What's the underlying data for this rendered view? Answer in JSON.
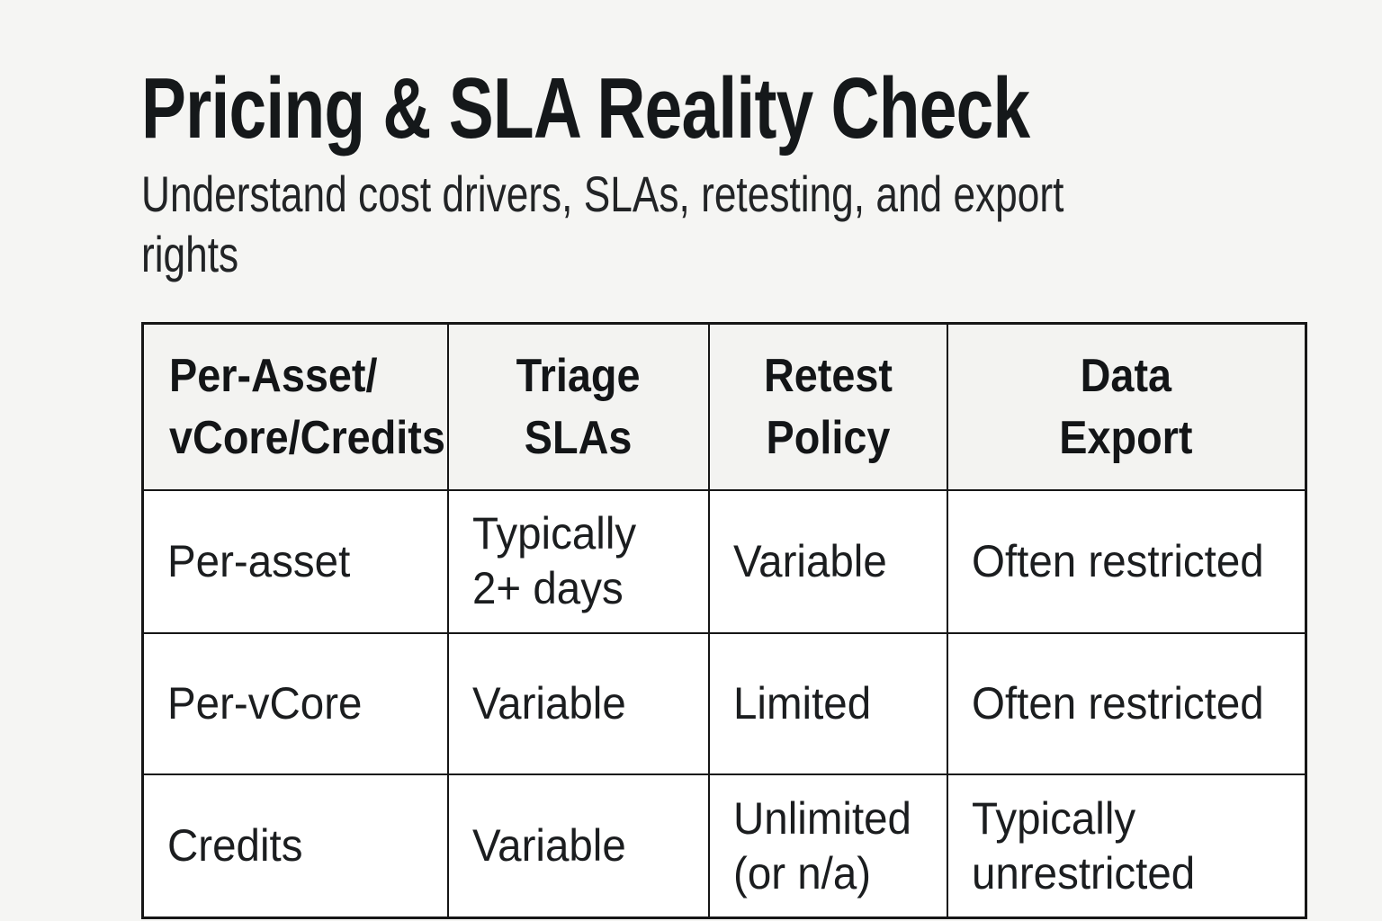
{
  "page": {
    "title": "Pricing & SLA Reality Check",
    "subtitle": "Understand cost drivers, SLAs, retesting, and export rights"
  },
  "table": {
    "columns": [
      {
        "label": "Per-Asset/\nvCore/Credits"
      },
      {
        "label": "Triage\nSLAs"
      },
      {
        "label": "Retest\nPolicy"
      },
      {
        "label": "Data\nExport"
      }
    ],
    "rows": [
      [
        "Per-asset",
        "Typically\n2+ days",
        "Variable",
        "Often restricted"
      ],
      [
        "Per-vCore",
        "Variable",
        "Limited",
        "Often restricted"
      ],
      [
        "Credits",
        "Variable",
        "Unlimited\n(or n/a)",
        "Typically\nunrestricted"
      ]
    ]
  },
  "colors": {
    "page_background": "#f5f5f3",
    "header_cell_background": "#f3f3f1",
    "body_cell_background": "#ffffff",
    "table_border": "#161616",
    "text": "#15181a"
  }
}
